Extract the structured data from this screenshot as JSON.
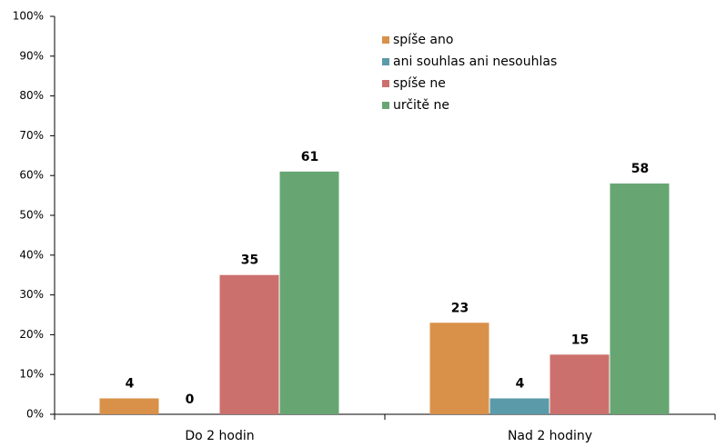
{
  "chart_data": {
    "type": "bar",
    "categories": [
      "Do 2 hodin",
      "Nad 2 hodiny"
    ],
    "series": [
      {
        "name": "spíše ano",
        "color": "#d9914a",
        "values": [
          4,
          23
        ]
      },
      {
        "name": "ani souhlas ani nesouhlas",
        "color": "#5b9aa9",
        "values": [
          0,
          4
        ]
      },
      {
        "name": "spíše ne",
        "color": "#cc706d",
        "values": [
          35,
          15
        ]
      },
      {
        "name": "určitě ne",
        "color": "#67a673",
        "values": [
          61,
          58
        ]
      }
    ],
    "ylim": [
      0,
      100
    ],
    "yticks": [
      {
        "value": 0,
        "label": "0%"
      },
      {
        "value": 10,
        "label": "10%"
      },
      {
        "value": 20,
        "label": "20%"
      },
      {
        "value": 30,
        "label": "30%"
      },
      {
        "value": 40,
        "label": "40%"
      },
      {
        "value": 50,
        "label": "50%"
      },
      {
        "value": 60,
        "label": "60%"
      },
      {
        "value": 70,
        "label": "70%"
      },
      {
        "value": 80,
        "label": "80%"
      },
      {
        "value": 90,
        "label": "90%"
      },
      {
        "value": 100,
        "label": "100%"
      }
    ],
    "legend": "top-right"
  }
}
